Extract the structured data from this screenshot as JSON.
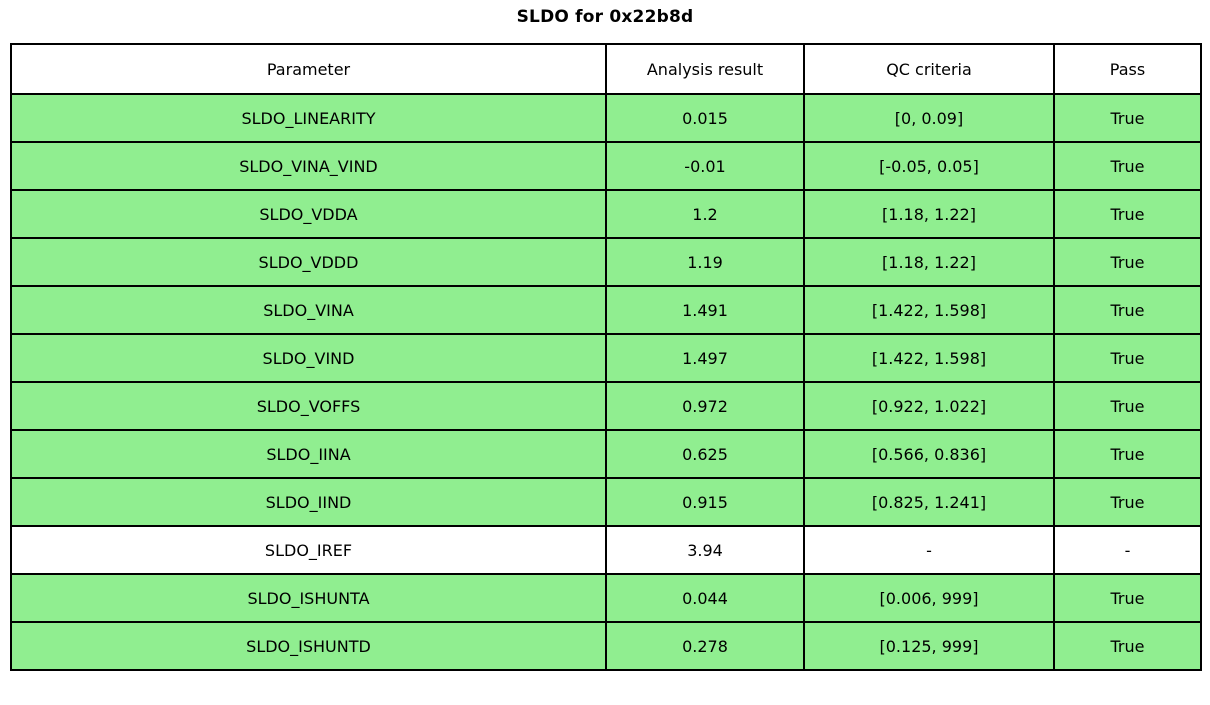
{
  "title": "SLDO for 0x22b8d",
  "colors": {
    "pass": "#90EE90",
    "neutral": "#FFFFFF",
    "border": "#000000",
    "text": "#000000"
  },
  "table": {
    "columns": {
      "parameter": "Parameter",
      "result": "Analysis result",
      "criteria": "QC criteria",
      "pass": "Pass"
    },
    "rows": [
      {
        "parameter": "SLDO_LINEARITY",
        "result": "0.015",
        "criteria": "[0, 0.09]",
        "pass": "True",
        "color": "pass"
      },
      {
        "parameter": "SLDO_VINA_VIND",
        "result": "-0.01",
        "criteria": "[-0.05, 0.05]",
        "pass": "True",
        "color": "pass"
      },
      {
        "parameter": "SLDO_VDDA",
        "result": "1.2",
        "criteria": "[1.18, 1.22]",
        "pass": "True",
        "color": "pass"
      },
      {
        "parameter": "SLDO_VDDD",
        "result": "1.19",
        "criteria": "[1.18, 1.22]",
        "pass": "True",
        "color": "pass"
      },
      {
        "parameter": "SLDO_VINA",
        "result": "1.491",
        "criteria": "[1.422, 1.598]",
        "pass": "True",
        "color": "pass"
      },
      {
        "parameter": "SLDO_VIND",
        "result": "1.497",
        "criteria": "[1.422, 1.598]",
        "pass": "True",
        "color": "pass"
      },
      {
        "parameter": "SLDO_VOFFS",
        "result": "0.972",
        "criteria": "[0.922, 1.022]",
        "pass": "True",
        "color": "pass"
      },
      {
        "parameter": "SLDO_IINA",
        "result": "0.625",
        "criteria": "[0.566, 0.836]",
        "pass": "True",
        "color": "pass"
      },
      {
        "parameter": "SLDO_IIND",
        "result": "0.915",
        "criteria": "[0.825, 1.241]",
        "pass": "True",
        "color": "pass"
      },
      {
        "parameter": "SLDO_IREF",
        "result": "3.94",
        "criteria": "-",
        "pass": "-",
        "color": "neutral"
      },
      {
        "parameter": "SLDO_ISHUNTA",
        "result": "0.044",
        "criteria": "[0.006, 999]",
        "pass": "True",
        "color": "pass"
      },
      {
        "parameter": "SLDO_ISHUNTD",
        "result": "0.278",
        "criteria": "[0.125, 999]",
        "pass": "True",
        "color": "pass"
      }
    ]
  },
  "chart_data": {
    "type": "table",
    "title": "SLDO for 0x22b8d",
    "columns": [
      "Parameter",
      "Analysis result",
      "QC criteria",
      "Pass"
    ],
    "rows": [
      [
        "SLDO_LINEARITY",
        0.015,
        "[0, 0.09]",
        "True"
      ],
      [
        "SLDO_VINA_VIND",
        -0.01,
        "[-0.05, 0.05]",
        "True"
      ],
      [
        "SLDO_VDDA",
        1.2,
        "[1.18, 1.22]",
        "True"
      ],
      [
        "SLDO_VDDD",
        1.19,
        "[1.18, 1.22]",
        "True"
      ],
      [
        "SLDO_VINA",
        1.491,
        "[1.422, 1.598]",
        "True"
      ],
      [
        "SLDO_VIND",
        1.497,
        "[1.422, 1.598]",
        "True"
      ],
      [
        "SLDO_VOFFS",
        0.972,
        "[0.922, 1.022]",
        "True"
      ],
      [
        "SLDO_IINA",
        0.625,
        "[0.566, 0.836]",
        "True"
      ],
      [
        "SLDO_IIND",
        0.915,
        "[0.825, 1.241]",
        "True"
      ],
      [
        "SLDO_IREF",
        3.94,
        "-",
        "-"
      ],
      [
        "SLDO_ISHUNTA",
        0.044,
        "[0.006, 999]",
        "True"
      ],
      [
        "SLDO_ISHUNTD",
        0.278,
        "[0.125, 999]",
        "True"
      ]
    ],
    "row_highlight": "green (#90EE90) for passing rows; white for SLDO_IREF row with no QC criteria",
    "legend_position": "none",
    "grid": "full cell borders, black"
  }
}
